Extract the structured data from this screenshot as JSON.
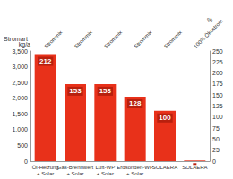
{
  "chart_data": {
    "type": "bar",
    "annotation": "Stromart",
    "y_label": "kg/a",
    "y2_label": "%",
    "categories": [
      "Öl-Heizung\n+ Solar",
      "Gas-Brennwert\n+ Solar",
      "Luft-WP\n+ Solar",
      "Erdsonden-WP\n+ Solar",
      "SOLAERA",
      "SOLAERA"
    ],
    "column_headers": [
      "Strommix",
      "Strommix",
      "Strommix",
      "Strommix",
      "Strommix",
      "100% Ökostrom"
    ],
    "values": [
      3400,
      2450,
      2450,
      2050,
      1600,
      20
    ],
    "relative_values": [
      212,
      153,
      153,
      128,
      100,
      null
    ],
    "color": "#e8311a",
    "ylim": [
      0,
      3500
    ],
    "yticks": [
      0,
      500,
      1000,
      1500,
      2000,
      2500,
      3000,
      3500
    ],
    "y2lim": [
      0,
      250
    ],
    "y2ticks": [
      0,
      25,
      50,
      75,
      100,
      125,
      150,
      175,
      200,
      225,
      250
    ],
    "grid": false,
    "data_labels": true
  }
}
